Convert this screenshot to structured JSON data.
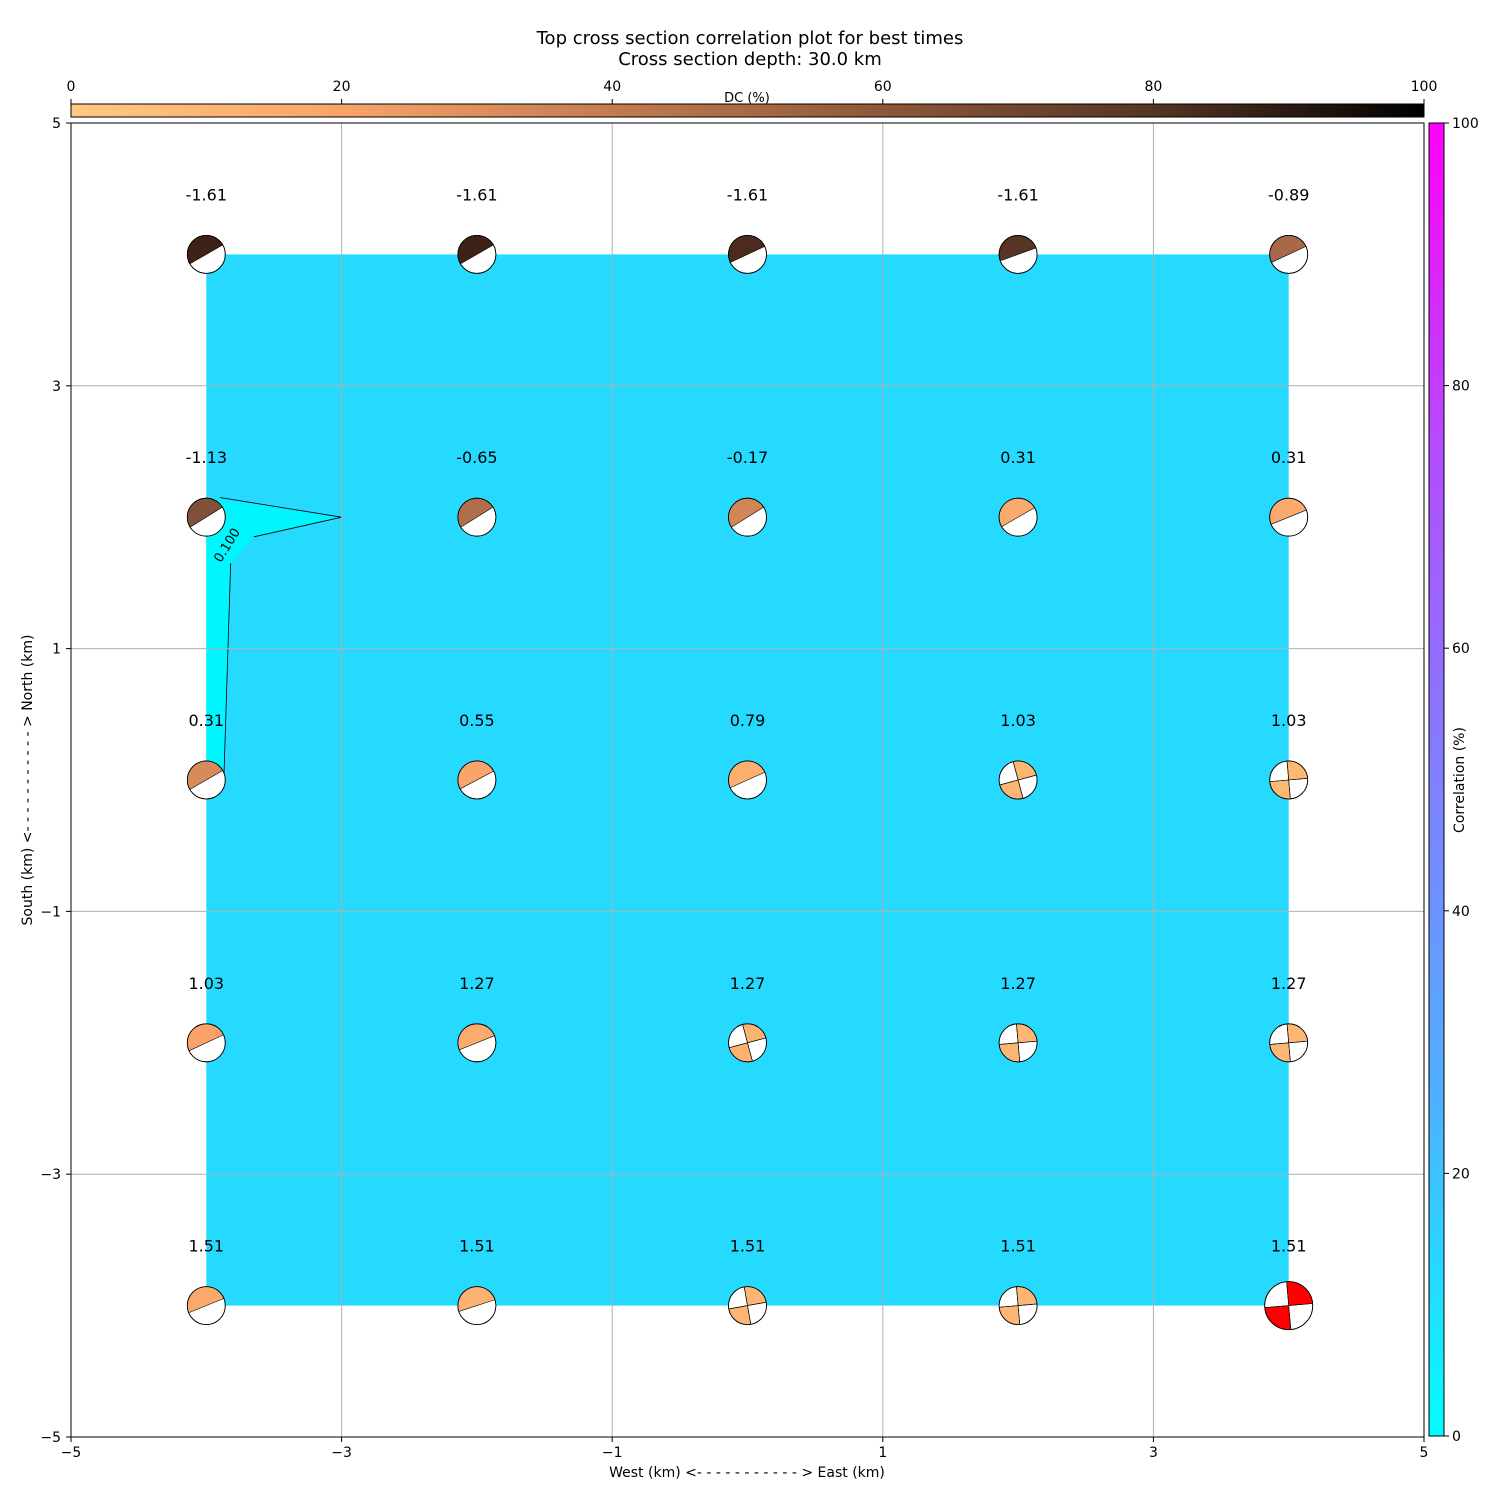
{
  "chart_data": {
    "type": "heatmap",
    "title": "Top cross section correlation plot for best times",
    "subtitle": "Cross section depth: 30.0 km",
    "xlabel": "West (km) <- - - - - - - - - - - > East (km)",
    "ylabel": "South (km) <- - - - - - - - - - - > North (km)",
    "xlim": [
      -5,
      5
    ],
    "ylim": [
      -5,
      5
    ],
    "x_ticks": [
      -5,
      -3,
      -1,
      1,
      3,
      5
    ],
    "y_ticks": [
      -5,
      -3,
      -1,
      1,
      3,
      5
    ],
    "x_tick_labels": [
      "−5",
      "−3",
      "−1",
      "1",
      "3",
      "5"
    ],
    "y_tick_labels": [
      "−5",
      "−3",
      "−1",
      "1",
      "3",
      "5"
    ],
    "grid": true,
    "field_extent": {
      "x": [
        -4,
        4
      ],
      "y": [
        -4,
        4
      ]
    },
    "field_color": "#26d9ff",
    "contour": {
      "label": "0.100",
      "color": "#00f6ff"
    },
    "dc_colorbar": {
      "label": "DC (%)",
      "range": [
        0,
        100
      ],
      "ticks": [
        0,
        20,
        40,
        60,
        80,
        100
      ],
      "tick_labels": [
        "0",
        "20",
        "40",
        "60",
        "80",
        "100"
      ],
      "colors": [
        "#ffc97f",
        "#f9a36a",
        "#c47b50",
        "#8d5838",
        "#563524",
        "#000000"
      ]
    },
    "correlation_colorbar": {
      "label": "Correlation (%)",
      "range": [
        0,
        100
      ],
      "ticks": [
        0,
        20,
        40,
        60,
        80,
        100
      ],
      "tick_labels": [
        "0",
        "20",
        "40",
        "60",
        "80",
        "100"
      ],
      "colors": [
        "#00ffff",
        "#4db2ff",
        "#8080ff",
        "#b34dff",
        "#ff00ff"
      ]
    },
    "points": [
      {
        "x": -4,
        "y": 4,
        "label": "-1.61",
        "fill": "#3e2216",
        "rot": 30
      },
      {
        "x": -2,
        "y": 4,
        "label": "-1.61",
        "fill": "#3e2216",
        "rot": 30
      },
      {
        "x": 0,
        "y": 4,
        "label": "-1.61",
        "fill": "#4c2a1d",
        "rot": 25
      },
      {
        "x": 2,
        "y": 4,
        "label": "-1.61",
        "fill": "#573423",
        "rot": 20
      },
      {
        "x": 4,
        "y": 4,
        "label": "-0.89",
        "fill": "#a8694a",
        "rot": 25
      },
      {
        "x": -4,
        "y": 2,
        "label": "-1.13",
        "fill": "#80513a",
        "rot": 32
      },
      {
        "x": -2,
        "y": 2,
        "label": "-0.65",
        "fill": "#b06f4c",
        "rot": 32
      },
      {
        "x": 0,
        "y": 2,
        "label": "-0.17",
        "fill": "#d08657",
        "rot": 32
      },
      {
        "x": 2,
        "y": 2,
        "label": "0.31",
        "fill": "#fbaa6e",
        "rot": 30
      },
      {
        "x": 4,
        "y": 2,
        "label": "0.31",
        "fill": "#fbaa6e",
        "rot": 22
      },
      {
        "x": -4,
        "y": 0,
        "label": "0.31",
        "fill": "#d68b5a",
        "rot": 30
      },
      {
        "x": -2,
        "y": 0,
        "label": "0.55",
        "fill": "#f8a46a",
        "rot": 28
      },
      {
        "x": 0,
        "y": 0,
        "label": "0.79",
        "fill": "#fbb06f",
        "rot": 24
      },
      {
        "x": 2,
        "y": 0,
        "label": "1.03",
        "fill": "#fcb673",
        "rot": 15
      },
      {
        "x": 4,
        "y": 0,
        "label": "1.03",
        "fill": "#fdb874",
        "rot": 5
      },
      {
        "x": -4,
        "y": -2,
        "label": "1.03",
        "fill": "#f9a36a",
        "rot": 25
      },
      {
        "x": -2,
        "y": -2,
        "label": "1.27",
        "fill": "#fbab6e",
        "rot": 22
      },
      {
        "x": 0,
        "y": -2,
        "label": "1.27",
        "fill": "#fcb271",
        "rot": 15
      },
      {
        "x": 2,
        "y": -2,
        "label": "1.27",
        "fill": "#fdb673",
        "rot": 5
      },
      {
        "x": 4,
        "y": -2,
        "label": "1.27",
        "fill": "#fdb673",
        "rot": 5
      },
      {
        "x": -4,
        "y": -4,
        "label": "1.51",
        "fill": "#fba86d",
        "rot": 22
      },
      {
        "x": -2,
        "y": -4,
        "label": "1.51",
        "fill": "#fcb071",
        "rot": 18
      },
      {
        "x": 0,
        "y": -4,
        "label": "1.51",
        "fill": "#fdb574",
        "rot": 10
      },
      {
        "x": 2,
        "y": -4,
        "label": "1.51",
        "fill": "#fdb673",
        "rot": 5
      },
      {
        "x": 4,
        "y": -4,
        "label": "1.51",
        "fill": "#ff0000",
        "rot": 5,
        "highlight": true
      }
    ]
  }
}
